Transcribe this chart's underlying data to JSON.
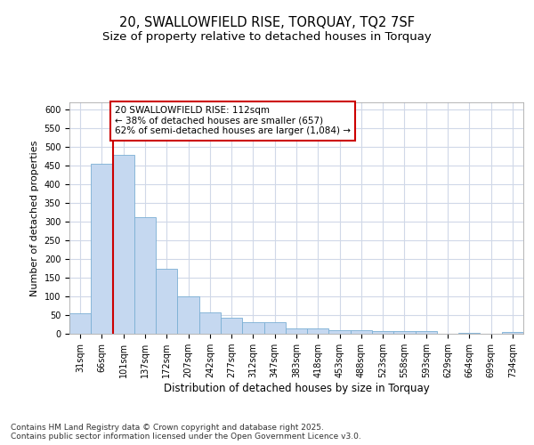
{
  "title": "20, SWALLOWFIELD RISE, TORQUAY, TQ2 7SF",
  "subtitle": "Size of property relative to detached houses in Torquay",
  "xlabel": "Distribution of detached houses by size in Torquay",
  "ylabel": "Number of detached properties",
  "bar_color": "#c5d8f0",
  "bar_edge_color": "#7bafd4",
  "background_color": "#ffffff",
  "grid_color": "#d0d8e8",
  "categories": [
    "31sqm",
    "66sqm",
    "101sqm",
    "137sqm",
    "172sqm",
    "207sqm",
    "242sqm",
    "277sqm",
    "312sqm",
    "347sqm",
    "383sqm",
    "418sqm",
    "453sqm",
    "488sqm",
    "523sqm",
    "558sqm",
    "593sqm",
    "629sqm",
    "664sqm",
    "699sqm",
    "734sqm"
  ],
  "values": [
    55,
    455,
    480,
    313,
    175,
    100,
    58,
    42,
    30,
    30,
    15,
    15,
    9,
    9,
    8,
    6,
    8,
    1,
    3,
    1,
    4
  ],
  "red_line_x": 2,
  "annotation_text": "20 SWALLOWFIELD RISE: 112sqm\n← 38% of detached houses are smaller (657)\n62% of semi-detached houses are larger (1,084) →",
  "annotation_box_color": "#ffffff",
  "annotation_box_edge": "#cc0000",
  "red_line_color": "#cc0000",
  "ylim": [
    0,
    620
  ],
  "yticks": [
    0,
    50,
    100,
    150,
    200,
    250,
    300,
    350,
    400,
    450,
    500,
    550,
    600
  ],
  "footnote": "Contains HM Land Registry data © Crown copyright and database right 2025.\nContains public sector information licensed under the Open Government Licence v3.0.",
  "title_fontsize": 10.5,
  "subtitle_fontsize": 9.5,
  "xlabel_fontsize": 8.5,
  "ylabel_fontsize": 8.0,
  "tick_fontsize": 7.0,
  "annotation_fontsize": 7.5,
  "footnote_fontsize": 6.5
}
